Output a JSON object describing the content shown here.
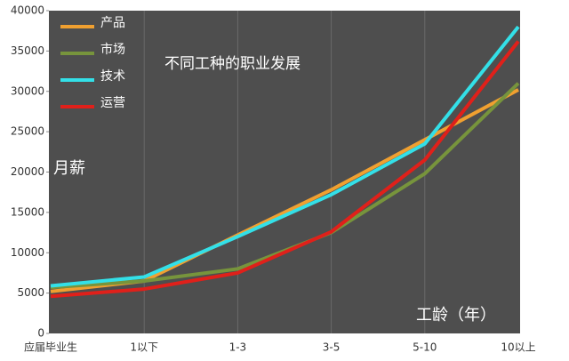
{
  "chart_data": {
    "type": "line",
    "title": "不同工种的职业发展",
    "y_label": "月薪",
    "x_label": "工龄（年）",
    "categories": [
      "应届毕业生",
      "1以下",
      "1-3",
      "3-5",
      "5-10",
      "10以上"
    ],
    "series": [
      {
        "name": "产品",
        "color": "#f0a030",
        "values": [
          5200,
          6500,
          12200,
          17800,
          24000,
          30200
        ]
      },
      {
        "name": "市场",
        "color": "#77943c",
        "values": [
          5700,
          6500,
          8000,
          12500,
          19800,
          31000
        ]
      },
      {
        "name": "技术",
        "color": "#33e0e8",
        "values": [
          5900,
          7000,
          12000,
          17200,
          23500,
          38000
        ]
      },
      {
        "name": "运营",
        "color": "#e0201a",
        "values": [
          4600,
          5500,
          7500,
          12600,
          21500,
          36200
        ]
      }
    ],
    "ylim": [
      0,
      40000
    ],
    "yticks": [
      0,
      5000,
      10000,
      15000,
      20000,
      25000,
      30000,
      35000,
      40000
    ],
    "legend": "top-left",
    "background": "#4e4e4e"
  }
}
